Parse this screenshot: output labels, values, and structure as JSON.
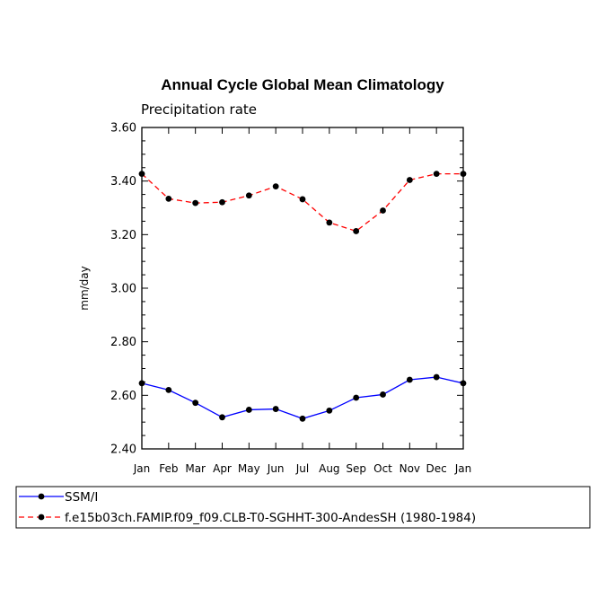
{
  "chart_data": {
    "type": "line",
    "title": "Annual Cycle Global Mean Climatology",
    "subtitle": "Precipitation rate",
    "ylabel": "mm/day",
    "xlabel": "",
    "ylim": [
      2.4,
      3.6
    ],
    "yticks": [
      "2.40",
      "2.60",
      "2.80",
      "3.00",
      "3.20",
      "3.40",
      "3.60"
    ],
    "categories": [
      "Jan",
      "Feb",
      "Mar",
      "Apr",
      "May",
      "Jun",
      "Jul",
      "Aug",
      "Sep",
      "Oct",
      "Nov",
      "Dec",
      "Jan"
    ],
    "series": [
      {
        "name": "SSM/I",
        "color": "#0000ff",
        "dash": "solid",
        "values": [
          2.645,
          2.62,
          2.572,
          2.518,
          2.546,
          2.549,
          2.513,
          2.543,
          2.591,
          2.603,
          2.658,
          2.668,
          2.645
        ]
      },
      {
        "name": "f.e15b03ch.FAMIP.f09_f09.CLB-T0-SGHHT-300-AndesSH (1980-1984)",
        "color": "#ff0000",
        "dash": "dashed",
        "values": [
          3.427,
          3.334,
          3.318,
          3.321,
          3.346,
          3.38,
          3.332,
          3.245,
          3.213,
          3.29,
          3.404,
          3.427,
          3.427
        ]
      }
    ],
    "legend_position": "bottom-left",
    "grid": false
  }
}
